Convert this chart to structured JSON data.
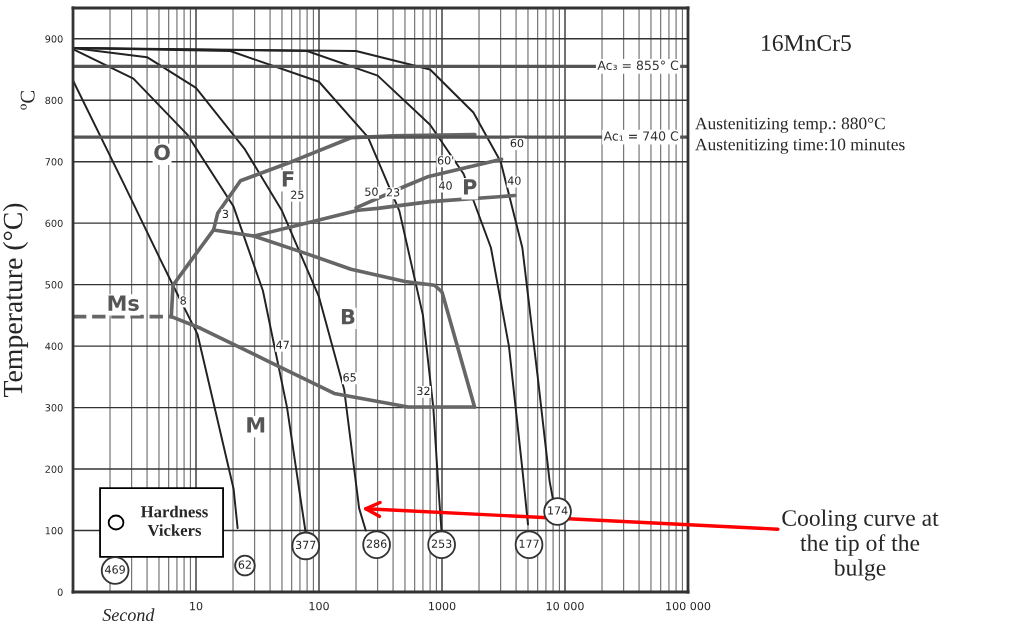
{
  "chart_data": {
    "type": "line",
    "title": "16MnCr5",
    "xlabel": "Second",
    "ylabel": "Temperature (°C)",
    "log": "x",
    "xlim": [
      1,
      100000
    ],
    "ylim": [
      0,
      950
    ],
    "xticks": [
      10,
      100,
      1000,
      {
        "value": 10000,
        "label": "10 000"
      },
      {
        "value": 100000,
        "label": "100 000"
      }
    ],
    "yticks": [
      0,
      100,
      200,
      300,
      400,
      500,
      600,
      700,
      800,
      900
    ],
    "grid": true,
    "ref_lines": [
      {
        "axis": "y",
        "value": 855,
        "label": "Ac₃ = 855° C",
        "color": "#555555"
      },
      {
        "axis": "y",
        "value": 740,
        "label": "Ac₁ = 740 C",
        "color": "#555555"
      }
    ],
    "series": [
      {
        "color": "#222222",
        "x": [
          1,
          2.56,
          5.1,
          6.5,
          10.3,
          20.2,
          21.8
        ],
        "values": [
          832,
          666,
          542,
          499,
          419,
          168,
          104
        ]
      },
      {
        "color": "#222222",
        "x": [
          1,
          3.1,
          8.5,
          20.2,
          35,
          55,
          71,
          78
        ],
        "values": [
          883,
          835,
          744,
          627,
          490,
          300,
          150,
          96
        ]
      },
      {
        "color": "#222222",
        "x": [
          1,
          4,
          10,
          25,
          50,
          100,
          160,
          212,
          240
        ],
        "values": [
          885,
          870,
          820,
          720,
          620,
          480,
          330,
          136,
          100
        ]
      },
      {
        "color": "#222222",
        "x": [
          1,
          19,
          100,
          250,
          450,
          700,
          850,
          950,
          990
        ],
        "values": [
          885,
          880,
          830,
          740,
          620,
          450,
          300,
          150,
          100
        ]
      },
      {
        "color": "#222222",
        "x": [
          1,
          80,
          300,
          800,
          1500,
          2500,
          3500,
          4500,
          5000
        ],
        "values": [
          885,
          880,
          840,
          760,
          680,
          560,
          400,
          200,
          110
        ]
      },
      {
        "color": "#222222",
        "x": [
          1,
          200,
          800,
          1800,
          3000,
          4500,
          6000,
          7500,
          8000
        ],
        "values": [
          885,
          880,
          850,
          780,
          700,
          560,
          350,
          180,
          150
        ]
      },
      {
        "color": "#666666",
        "x": [
          1850,
          400,
          182,
          60,
          23,
          15,
          13.9,
          8.5,
          6.5,
          6.3
        ],
        "values": [
          744,
          742,
          739,
          700,
          669,
          616,
          589,
          531,
          499,
          448
        ]
      },
      {
        "color": "#666666",
        "x": [
          13.9,
          29.5,
          100,
          208,
          300,
          800,
          2900,
          3900
        ],
        "values": [
          589,
          579,
          605,
          621,
          624,
          635,
          643,
          645
        ]
      },
      {
        "color": "#666666",
        "x": [
          200,
          500,
          780,
          1200,
          3050
        ],
        "values": [
          625,
          660,
          676,
          685,
          704
        ]
      },
      {
        "color": "#666666",
        "x": [
          29.5,
          80,
          182,
          500,
          870,
          1000,
          1840
        ],
        "values": [
          579,
          550,
          525,
          505,
          499,
          488,
          301
        ]
      },
      {
        "color": "#666666",
        "x": [
          6.3,
          10.9,
          38,
          133,
          530,
          1840
        ],
        "values": [
          448,
          429,
          376,
          323,
          301,
          301
        ]
      },
      {
        "color": "#666666",
        "x": [
          1,
          6.3
        ],
        "values": [
          448,
          448
        ],
        "line_style": "dashed"
      }
    ],
    "annotations": [
      "ºC",
      "Austenitizing temp.: 880°C",
      "Austenitizing time:10 minutes",
      "Hardness\nVickers",
      {
        "text": "469",
        "x": 2.2,
        "y": 35
      },
      {
        "text": "62",
        "x": 25,
        "y": 43
      },
      {
        "text": "377",
        "x": 78,
        "y": 75
      },
      {
        "text": "286",
        "x": 294,
        "y": 77
      },
      {
        "text": "253",
        "x": 993,
        "y": 77
      },
      {
        "text": "177",
        "x": 5100,
        "y": 77
      },
      {
        "text": "174",
        "x": 8700,
        "y": 131
      },
      {
        "text": "O",
        "x": 5.3,
        "y": 712
      },
      {
        "text": "F",
        "x": 56,
        "y": 669
      },
      {
        "text": "P",
        "x": 1680,
        "y": 656
      },
      {
        "text": "B",
        "x": 172,
        "y": 445
      },
      {
        "text": "M",
        "x": 30.6,
        "y": 269
      },
      {
        "text": "Ms",
        "x": 2.56,
        "y": 467
      },
      {
        "text": "3",
        "x": 13.9,
        "y": 589
      },
      {
        "text": "25",
        "x": 50,
        "y": 620
      },
      {
        "text": "8",
        "x": 6.3,
        "y": 448
      },
      {
        "text": "47",
        "x": 38,
        "y": 376
      },
      {
        "text": "65",
        "x": 133,
        "y": 323
      },
      {
        "text": "32",
        "x": 530,
        "y": 301
      },
      {
        "text": "50",
        "x": 200,
        "y": 625
      },
      {
        "text": "23",
        "x": 300,
        "y": 624
      },
      {
        "text": "60'",
        "x": 780,
        "y": 676
      },
      {
        "text": "40",
        "x": 800,
        "y": 635
      },
      {
        "text": "40",
        "x": 2900,
        "y": 643
      },
      {
        "text": "60",
        "x": 3050,
        "y": 704
      },
      {
        "text": "Cooling curve at\nthe tip of the\nbulge",
        "x": 212,
        "y": 136
      }
    ]
  }
}
